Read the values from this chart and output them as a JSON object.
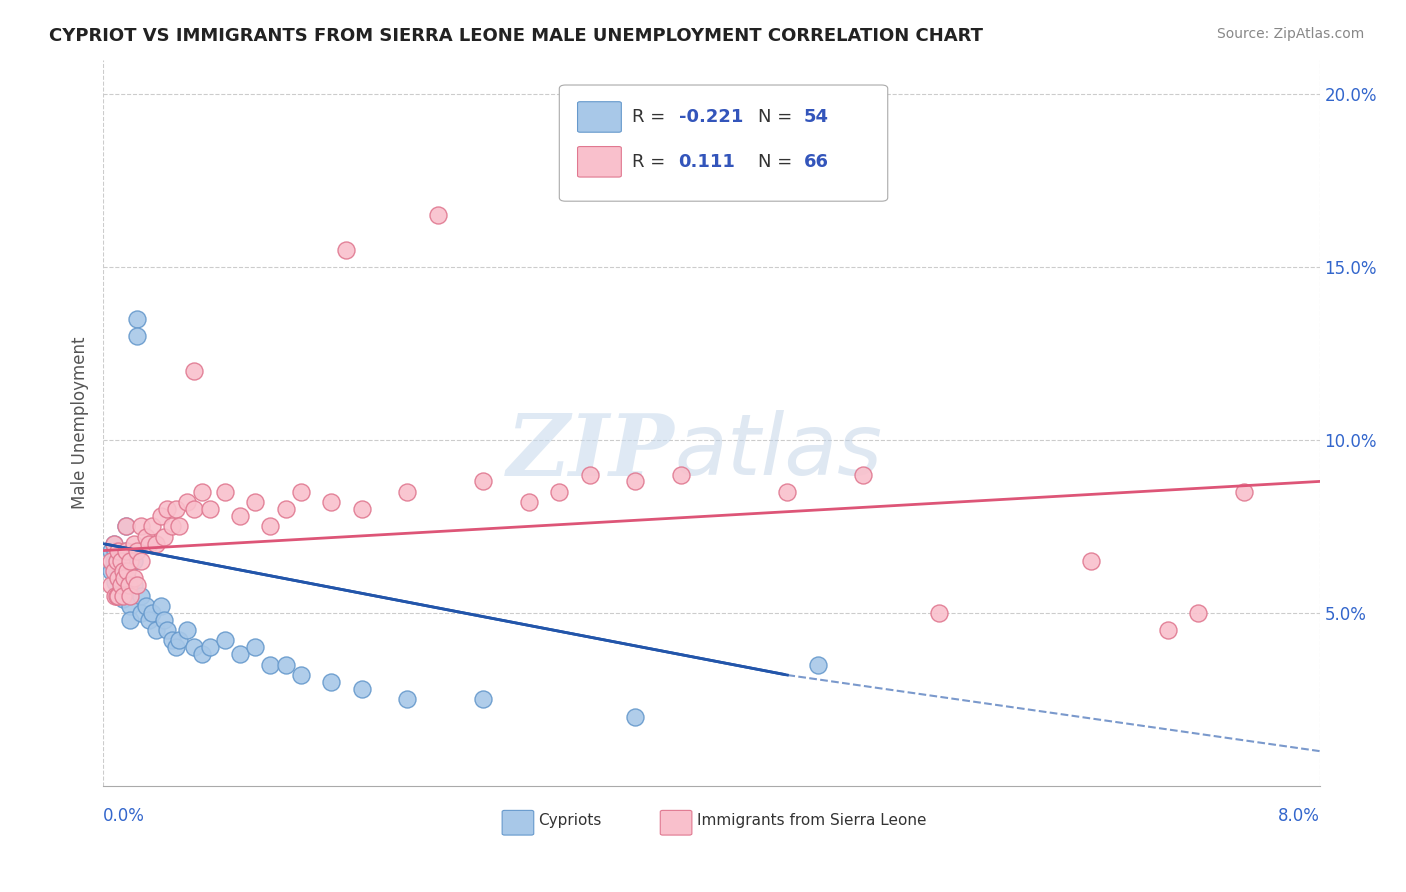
{
  "title": "CYPRIOT VS IMMIGRANTS FROM SIERRA LEONE MALE UNEMPLOYMENT CORRELATION CHART",
  "source": "Source: ZipAtlas.com",
  "ylabel": "Male Unemployment",
  "xlim": [
    0.0,
    8.0
  ],
  "ylim": [
    0.0,
    21.0
  ],
  "yticks": [
    0.0,
    5.0,
    10.0,
    15.0,
    20.0
  ],
  "ytick_labels": [
    "",
    "5.0%",
    "10.0%",
    "15.0%",
    "20.0%"
  ],
  "cypriot_color": "#a8c8e8",
  "cypriot_edge": "#6699cc",
  "sierra_leone_color": "#f9c0cc",
  "sierra_leone_edge": "#e07890",
  "trend_cypriot_color": "#2255aa",
  "trend_sierra_color": "#dd5577",
  "grid_color": "#cccccc",
  "background_color": "#ffffff",
  "cypriot_points_x": [
    0.05,
    0.05,
    0.07,
    0.07,
    0.08,
    0.08,
    0.09,
    0.09,
    0.1,
    0.1,
    0.1,
    0.12,
    0.12,
    0.13,
    0.13,
    0.14,
    0.15,
    0.15,
    0.16,
    0.17,
    0.18,
    0.18,
    0.2,
    0.2,
    0.22,
    0.22,
    0.25,
    0.25,
    0.28,
    0.3,
    0.32,
    0.35,
    0.38,
    0.4,
    0.42,
    0.45,
    0.48,
    0.5,
    0.55,
    0.6,
    0.65,
    0.7,
    0.8,
    0.9,
    1.0,
    1.1,
    1.2,
    1.3,
    1.5,
    1.7,
    2.0,
    2.5,
    3.5,
    4.7
  ],
  "cypriot_points_y": [
    6.8,
    6.2,
    7.0,
    6.5,
    6.8,
    5.9,
    6.2,
    5.5,
    6.5,
    6.0,
    5.5,
    6.3,
    5.8,
    6.0,
    5.4,
    5.8,
    7.5,
    6.8,
    6.0,
    5.5,
    5.2,
    4.8,
    6.5,
    5.8,
    13.5,
    13.0,
    5.5,
    5.0,
    5.2,
    4.8,
    5.0,
    4.5,
    5.2,
    4.8,
    4.5,
    4.2,
    4.0,
    4.2,
    4.5,
    4.0,
    3.8,
    4.0,
    4.2,
    3.8,
    4.0,
    3.5,
    3.5,
    3.2,
    3.0,
    2.8,
    2.5,
    2.5,
    2.0,
    3.5
  ],
  "sierra_leone_points_x": [
    0.05,
    0.05,
    0.07,
    0.07,
    0.08,
    0.09,
    0.09,
    0.1,
    0.1,
    0.1,
    0.12,
    0.12,
    0.13,
    0.13,
    0.14,
    0.15,
    0.15,
    0.16,
    0.17,
    0.18,
    0.18,
    0.2,
    0.2,
    0.22,
    0.22,
    0.25,
    0.25,
    0.28,
    0.3,
    0.32,
    0.35,
    0.38,
    0.4,
    0.42,
    0.45,
    0.48,
    0.5,
    0.55,
    0.6,
    0.65,
    0.7,
    0.8,
    0.9,
    1.0,
    1.1,
    1.2,
    1.3,
    1.5,
    1.7,
    2.0,
    2.5,
    2.8,
    3.0,
    3.2,
    3.5,
    3.8,
    4.5,
    5.0,
    5.5,
    6.5,
    7.0,
    7.2,
    7.5,
    2.2,
    1.6,
    0.6
  ],
  "sierra_leone_points_y": [
    6.5,
    5.8,
    7.0,
    6.2,
    5.5,
    6.5,
    5.5,
    6.8,
    6.0,
    5.5,
    6.5,
    5.8,
    6.2,
    5.5,
    6.0,
    7.5,
    6.8,
    6.2,
    5.8,
    6.5,
    5.5,
    7.0,
    6.0,
    6.8,
    5.8,
    7.5,
    6.5,
    7.2,
    7.0,
    7.5,
    7.0,
    7.8,
    7.2,
    8.0,
    7.5,
    8.0,
    7.5,
    8.2,
    8.0,
    8.5,
    8.0,
    8.5,
    7.8,
    8.2,
    7.5,
    8.0,
    8.5,
    8.2,
    8.0,
    8.5,
    8.8,
    8.2,
    8.5,
    9.0,
    8.8,
    9.0,
    8.5,
    9.0,
    5.0,
    6.5,
    4.5,
    5.0,
    8.5,
    16.5,
    15.5,
    12.0
  ],
  "trend_cypriot_x0": 0.0,
  "trend_cypriot_y0": 7.0,
  "trend_cypriot_x1": 4.5,
  "trend_cypriot_y1": 3.2,
  "trend_cypriot_dash_x0": 4.5,
  "trend_cypriot_dash_y0": 3.2,
  "trend_cypriot_dash_x1": 8.0,
  "trend_cypriot_dash_y1": 1.0,
  "trend_sierra_x0": 0.0,
  "trend_sierra_y0": 6.8,
  "trend_sierra_x1": 8.0,
  "trend_sierra_y1": 8.8
}
